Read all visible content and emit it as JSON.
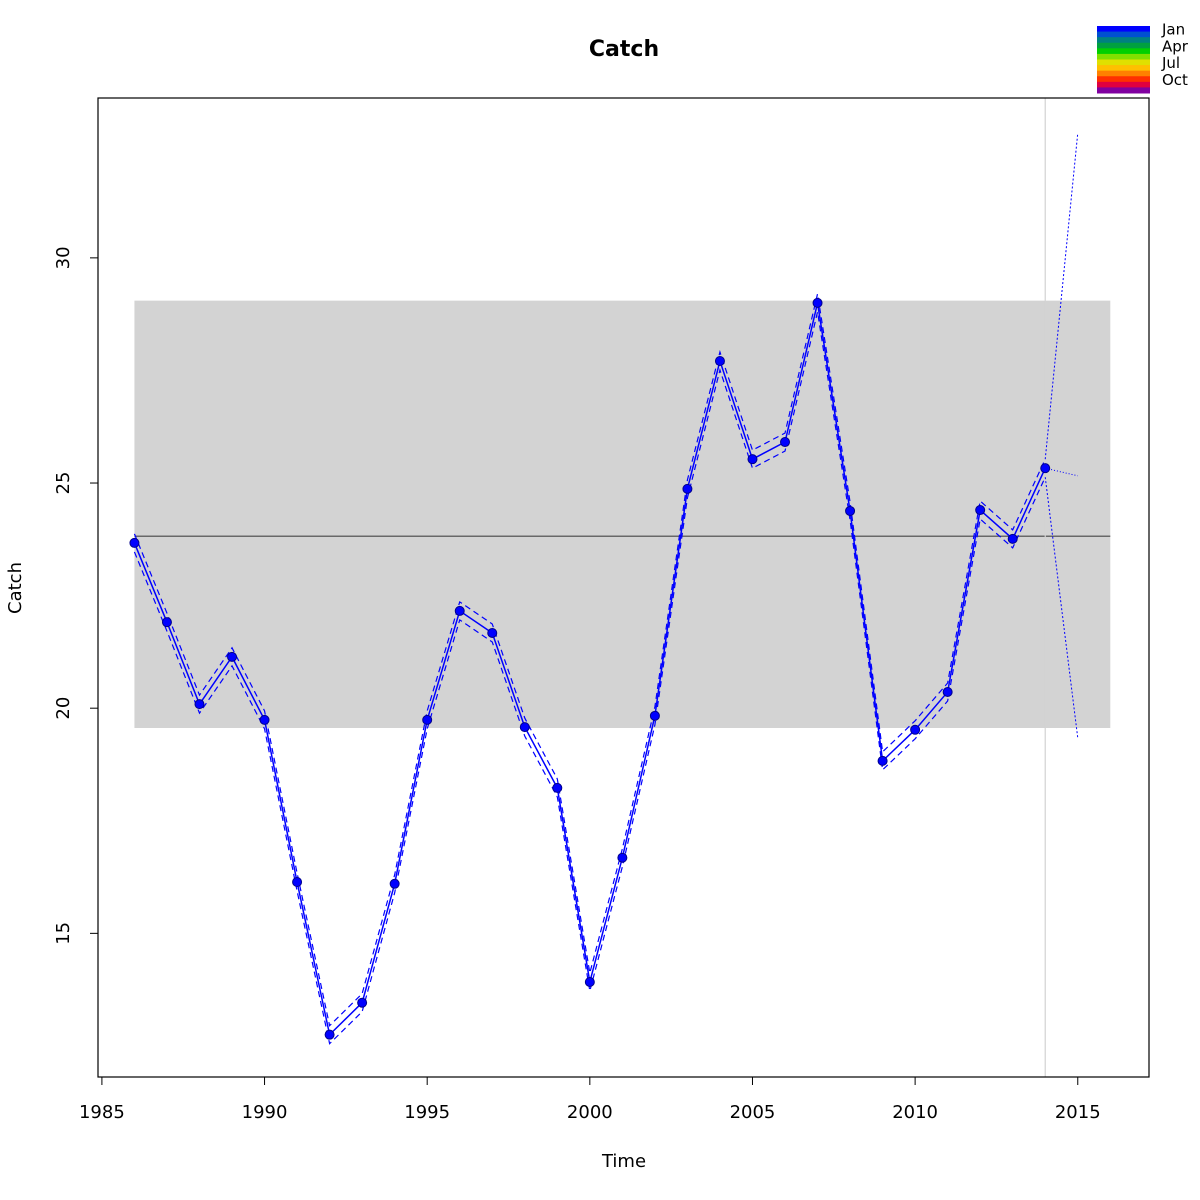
{
  "chart_data": {
    "type": "line",
    "title": "Catch",
    "xlabel": "Time",
    "ylabel": "Catch",
    "x": [
      1986,
      1987,
      1988,
      1989,
      1990,
      1991,
      1992,
      1993,
      1994,
      1995,
      1996,
      1997,
      1998,
      1999,
      2000,
      2001,
      2002,
      2003,
      2004,
      2005,
      2006,
      2007,
      2008,
      2009,
      2010,
      2011,
      2012,
      2013,
      2014
    ],
    "values": [
      23.67,
      21.91,
      20.09,
      21.14,
      19.74,
      16.14,
      12.75,
      13.46,
      16.1,
      19.74,
      22.16,
      21.67,
      19.58,
      18.23,
      13.92,
      16.68,
      19.83,
      24.87,
      27.71,
      25.53,
      25.91,
      29.0,
      24.38,
      18.83,
      19.52,
      20.36,
      24.4,
      23.76,
      25.33
    ],
    "upper": [
      23.87,
      22.11,
      20.29,
      21.34,
      19.94,
      16.34,
      12.95,
      13.66,
      16.3,
      19.94,
      22.36,
      21.87,
      19.78,
      18.43,
      14.12,
      16.88,
      20.03,
      25.07,
      27.91,
      25.73,
      26.11,
      29.2,
      24.58,
      19.03,
      19.72,
      20.56,
      24.6,
      23.96,
      25.53
    ],
    "lower": [
      23.47,
      21.71,
      19.89,
      20.94,
      19.54,
      15.94,
      12.55,
      13.26,
      15.9,
      19.54,
      21.96,
      21.47,
      19.38,
      18.03,
      13.72,
      16.48,
      19.63,
      24.67,
      27.51,
      25.33,
      25.71,
      28.8,
      24.18,
      18.63,
      19.32,
      20.16,
      24.2,
      23.56,
      25.13
    ],
    "color": "#0000ff",
    "forecast": {
      "x": [
        2014,
        2015
      ],
      "mid": [
        25.33,
        25.16
      ],
      "upper": [
        25.53,
        32.77
      ],
      "lower": [
        25.13,
        19.34
      ]
    },
    "mean_line": 23.82,
    "band": {
      "xmin": 1986,
      "xmax": 2016,
      "ymin": 19.56,
      "ymax": 29.05,
      "color": "#d3d3d3"
    },
    "vline": 2014,
    "xlim": [
      1984.88,
      2017.19
    ],
    "ylim": [
      11.81,
      33.55
    ],
    "xticks": [
      1985,
      1990,
      1995,
      2000,
      2005,
      2010,
      2015
    ],
    "yticks": [
      15,
      20,
      25,
      30
    ],
    "legend": {
      "labels": [
        "Jan",
        "Apr",
        "Jul",
        "Oct"
      ],
      "colors": [
        "#0000ff",
        "#0050d0",
        "#008080",
        "#00a040",
        "#00d000",
        "#80e000",
        "#e0e000",
        "#ffc000",
        "#ff8000",
        "#ff3000",
        "#e00040",
        "#8000a0"
      ]
    }
  }
}
